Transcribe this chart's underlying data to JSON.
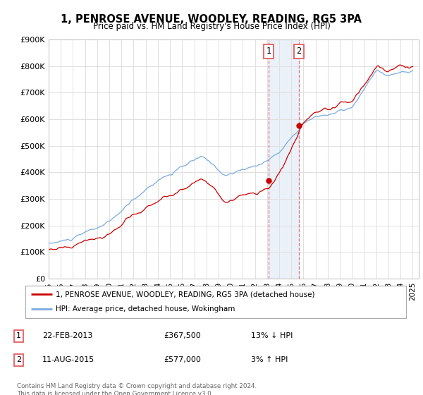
{
  "title": "1, PENROSE AVENUE, WOODLEY, READING, RG5 3PA",
  "subtitle": "Price paid vs. HM Land Registry's House Price Index (HPI)",
  "ylim": [
    0,
    900000
  ],
  "yticks": [
    0,
    100000,
    200000,
    300000,
    400000,
    500000,
    600000,
    700000,
    800000,
    900000
  ],
  "ytick_labels": [
    "£0",
    "£100K",
    "£200K",
    "£300K",
    "£400K",
    "£500K",
    "£600K",
    "£700K",
    "£800K",
    "£900K"
  ],
  "red_line_color": "#cc0000",
  "blue_line_color": "#7aabe0",
  "grid_color": "#e0e0e0",
  "background_color": "#ffffff",
  "sale1_date": 2013.13,
  "sale1_price": 367500,
  "sale2_date": 2015.62,
  "sale2_price": 577000,
  "shade_color": "#dce8f5",
  "shade_alpha": 0.6,
  "vline_color": "#e06060",
  "footer_text": "Contains HM Land Registry data © Crown copyright and database right 2024.\nThis data is licensed under the Open Government Licence v3.0.",
  "legend_line1": "1, PENROSE AVENUE, WOODLEY, READING, RG5 3PA (detached house)",
  "legend_line2": "HPI: Average price, detached house, Wokingham",
  "table_row1": [
    "1",
    "22-FEB-2013",
    "£367,500",
    "13% ↓ HPI"
  ],
  "table_row2": [
    "2",
    "11-AUG-2015",
    "£577,000",
    "3% ↑ HPI"
  ]
}
